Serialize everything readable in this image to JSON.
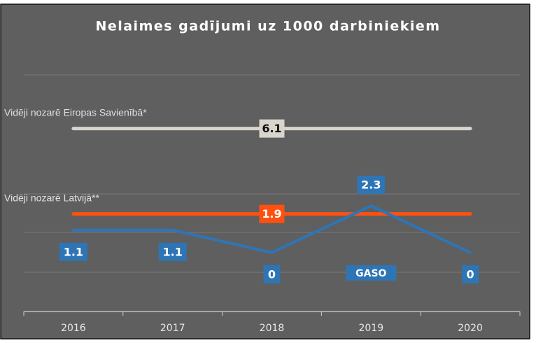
{
  "chart_data": {
    "type": "line",
    "title": "Nelaimes gadījumi uz 1000 darbiniekiem",
    "categories": [
      "2016",
      "2017",
      "2018",
      "2019",
      "2020"
    ],
    "series": [
      {
        "name": "GASO",
        "color": "#2e75b6",
        "values": [
          1.1,
          1.1,
          0,
          2.3,
          0
        ]
      },
      {
        "name": "Vidēji nozarē Eiropas Savienībā*",
        "color": "#d9d4cc",
        "values": [
          6.1,
          6.1,
          6.1,
          6.1,
          6.1
        ]
      },
      {
        "name": "Vidēji nozarē Latvijā**",
        "color": "#ff5010",
        "values": [
          1.9,
          1.9,
          1.9,
          1.9,
          1.9
        ]
      }
    ],
    "ylim": [
      -2.9,
      10.7
    ]
  }
}
